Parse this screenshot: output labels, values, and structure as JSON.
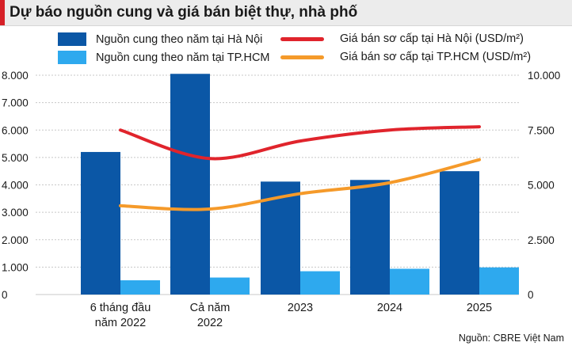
{
  "title": "Dự báo nguồn cung và giá bán biệt thự, nhà phố",
  "legend": {
    "bar_hanoi": "Nguồn cung theo năm tại Hà Nội",
    "bar_hcm": "Nguồn cung theo năm tại TP.HCM",
    "line_hanoi": "Giá bán sơ cấp tại Hà Nội (USD/m²)",
    "line_hcm": "Giá bán sơ cấp tại TP.HCM (USD/m²)"
  },
  "source": "Nguồn: CBRE Việt Nam",
  "colors": {
    "bar_hanoi": "#0b57a6",
    "bar_hcm": "#2ea9ee",
    "line_hanoi": "#e0242c",
    "line_hcm": "#f59a2a",
    "grid": "#c8c8c8",
    "title_bg": "#ececec",
    "title_accent": "#d62027"
  },
  "chart_data": {
    "type": "bar",
    "title": "Dự báo nguồn cung và giá bán biệt thự, nhà phố",
    "categories": [
      [
        "6 tháng đầu",
        "năm 2022"
      ],
      [
        "Cả năm",
        "2022"
      ],
      [
        "2023"
      ],
      [
        "2024"
      ],
      [
        "2025"
      ]
    ],
    "left_axis": {
      "ylim": [
        0,
        8000
      ],
      "ticks": [
        0,
        1000,
        2000,
        3000,
        4000,
        5000,
        6000,
        7000,
        8000
      ],
      "tick_labels": [
        "0",
        "1.000",
        "2.000",
        "3.000",
        "4.000",
        "5.000",
        "6.000",
        "7.000",
        "8.000"
      ]
    },
    "right_axis": {
      "ylim": [
        0,
        10000
      ],
      "ticks": [
        0,
        2500,
        5000,
        7500,
        10000
      ],
      "tick_labels": [
        "0",
        "2.500",
        "5.000",
        "7.500",
        "10.000"
      ]
    },
    "bar_series": [
      {
        "name": "Nguồn cung theo năm tại Hà Nội",
        "axis": "left",
        "values": [
          5200,
          8050,
          4120,
          4180,
          4500
        ]
      },
      {
        "name": "Nguồn cung theo năm tại TP.HCM",
        "axis": "left",
        "values": [
          520,
          620,
          850,
          940,
          990
        ]
      }
    ],
    "line_series": [
      {
        "name": "Giá bán sơ cấp tại Hà Nội (USD/m²)",
        "axis": "right",
        "x": [
          0,
          1,
          2,
          3,
          4
        ],
        "values": [
          7500,
          6200,
          7000,
          7500,
          7650
        ]
      },
      {
        "name": "Giá bán sơ cấp tại TP.HCM (USD/m²)",
        "axis": "right",
        "x": [
          0,
          1,
          2,
          3,
          4
        ],
        "values": [
          4050,
          3900,
          4600,
          5100,
          6150
        ]
      }
    ]
  }
}
